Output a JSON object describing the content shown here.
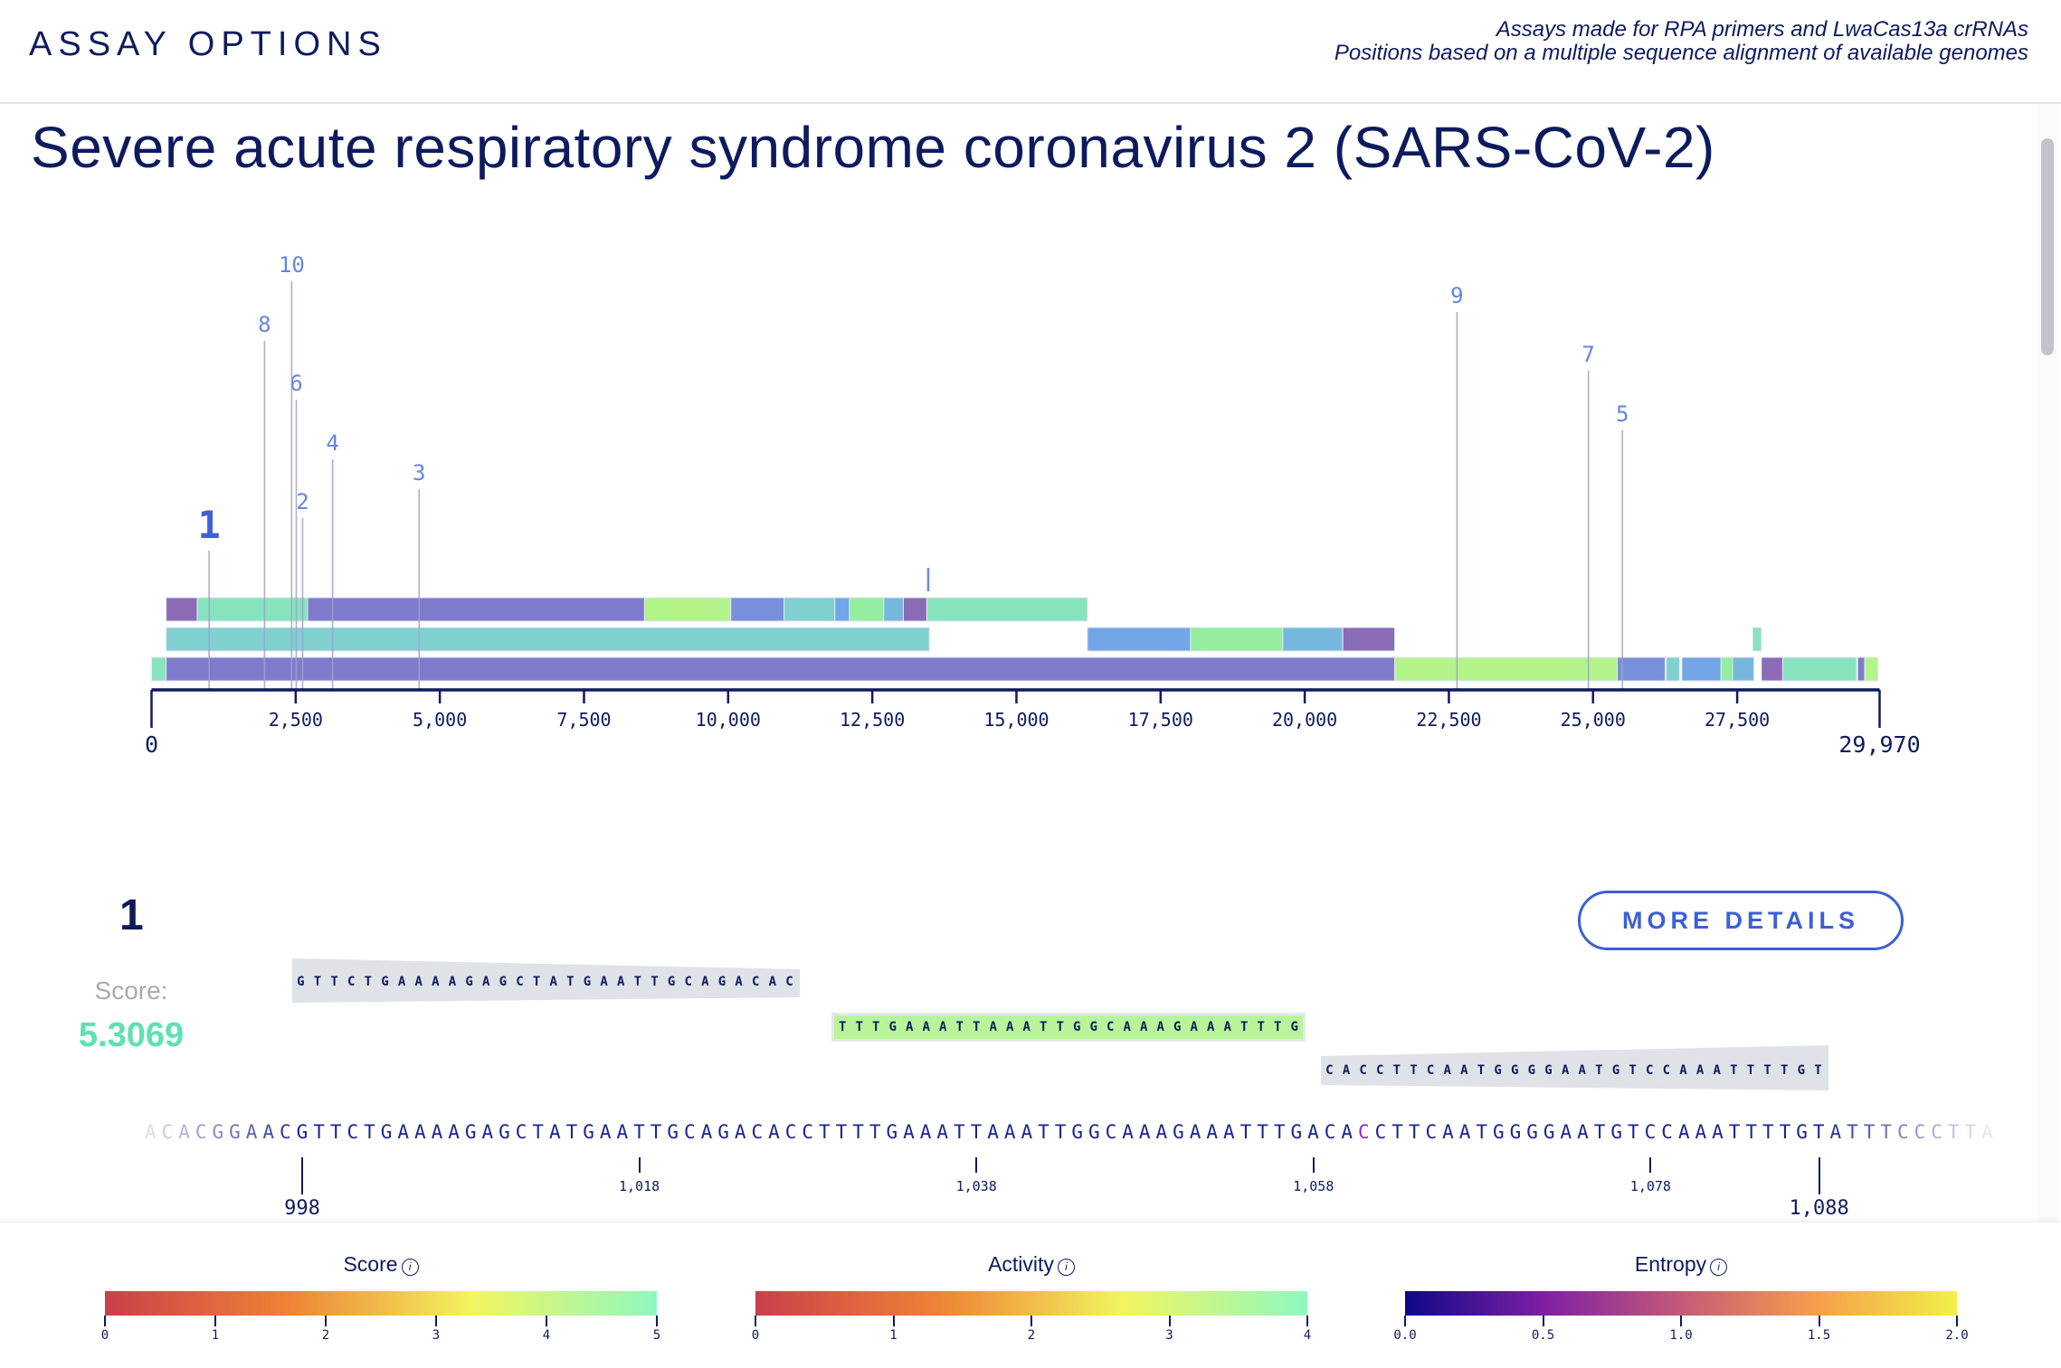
{
  "header": {
    "brand": "ASSAY OPTIONS",
    "note_line1": "Assays made for RPA primers and LwaCas13a crRNAs",
    "note_line2": "Positions based on a multiple sequence alignment of available genomes"
  },
  "title": "Severe acute respiratory syndrome coronavirus 2 (SARS-CoV-2)",
  "chart_data": {
    "type": "bar",
    "description_kind": "genome position map",
    "xlim": [
      0,
      29970
    ],
    "x_ticks": [
      0,
      2500,
      5000,
      7500,
      10000,
      12500,
      15000,
      17500,
      20000,
      22500,
      25000,
      27500,
      29970
    ],
    "x_tick_labels": [
      "0",
      "2,500",
      "5,000",
      "7,500",
      "10,000",
      "12,500",
      "15,000",
      "17,500",
      "20,000",
      "22,500",
      "25,000",
      "27,500",
      "29,970"
    ],
    "assays": [
      {
        "label": "1",
        "position": 998,
        "selected": true
      },
      {
        "label": "2",
        "position": 2620
      },
      {
        "label": "3",
        "position": 4640
      },
      {
        "label": "4",
        "position": 3140
      },
      {
        "label": "5",
        "position": 25510
      },
      {
        "label": "6",
        "position": 2510
      },
      {
        "label": "7",
        "position": 24920
      },
      {
        "label": "8",
        "position": 1960
      },
      {
        "label": "9",
        "position": 22640
      },
      {
        "label": "10",
        "position": 2430
      }
    ],
    "unlabeled_marker": 13470,
    "tracks": [
      [
        {
          "start": 253,
          "end": 792,
          "color": "#8a6bb5"
        },
        {
          "start": 792,
          "end": 2707,
          "color": "#86e3bd"
        },
        {
          "start": 2707,
          "end": 8550,
          "color": "#7f7bcc"
        },
        {
          "start": 8550,
          "end": 10046,
          "color": "#b3f48a"
        },
        {
          "start": 10046,
          "end": 10970,
          "color": "#7890db"
        },
        {
          "start": 10970,
          "end": 11851,
          "color": "#80d0d0"
        },
        {
          "start": 11851,
          "end": 12104,
          "color": "#73a6e6"
        },
        {
          "start": 12104,
          "end": 12698,
          "color": "#93ee9f"
        },
        {
          "start": 12698,
          "end": 13039,
          "color": "#76b8dc"
        },
        {
          "start": 13039,
          "end": 13446,
          "color": "#8a6bb5"
        },
        {
          "start": 13446,
          "end": 16230,
          "color": "#86e3bd"
        }
      ],
      [
        {
          "start": 253,
          "end": 13490,
          "color": "#80d0d0"
        },
        {
          "start": 16230,
          "end": 18020,
          "color": "#73a6e6"
        },
        {
          "start": 18020,
          "end": 19620,
          "color": "#93ee9f"
        },
        {
          "start": 19620,
          "end": 20660,
          "color": "#76b8dc"
        },
        {
          "start": 20660,
          "end": 21560,
          "color": "#8a6bb5"
        },
        {
          "start": 27770,
          "end": 27920,
          "color": "#86e3bd"
        }
      ],
      [
        {
          "start": 0,
          "end": 253,
          "color": "#86e3bd"
        },
        {
          "start": 253,
          "end": 21560,
          "color": "#7f7bcc"
        },
        {
          "start": 21560,
          "end": 25420,
          "color": "#b3f48a"
        },
        {
          "start": 25420,
          "end": 26250,
          "color": "#7890db"
        },
        {
          "start": 26270,
          "end": 26500,
          "color": "#80d0d0"
        },
        {
          "start": 26540,
          "end": 27220,
          "color": "#73a6e6"
        },
        {
          "start": 27220,
          "end": 27420,
          "color": "#93ee9f"
        },
        {
          "start": 27420,
          "end": 27790,
          "color": "#76b8dc"
        },
        {
          "start": 27920,
          "end": 28290,
          "color": "#8a6bb5"
        },
        {
          "start": 28290,
          "end": 29570,
          "color": "#86e3bd"
        },
        {
          "start": 29590,
          "end": 29710,
          "color": "#7f7bcc"
        },
        {
          "start": 29710,
          "end": 29940,
          "color": "#b3f48a"
        }
      ]
    ]
  },
  "detail": {
    "assay_number": "1",
    "score_label": "Score:",
    "score_value": "5.3069",
    "more_details_label": "MORE DETAILS",
    "forward_primer": "GTTCTGAAAAGAGCTATGAATTGCAGACAC",
    "crrna": "TTTGAAATTAAATTGGCAAAGAAATTTG",
    "reverse_primer": "CACCTTCAATGGGGAATGTCCAAATTTTGT",
    "sequence": "ACACGGAACGTTCTGAAAAGAGCTATGAATTGCAGACACCTTTTGAAATTAAATTGGCAAAGAAATTTGACACCTTCAATGGGGAATGTCCAAATTTTGTATTTCCCTTA",
    "sequence_start": 989,
    "highlighted_positions": [
      1061
    ],
    "highlight_color": "#8a2be2",
    "ticks": [
      {
        "position": 998,
        "label": "998",
        "major": true
      },
      {
        "position": 1018,
        "label": "1,018",
        "major": false
      },
      {
        "position": 1038,
        "label": "1,038",
        "major": false
      },
      {
        "position": 1058,
        "label": "1,058",
        "major": false
      },
      {
        "position": 1078,
        "label": "1,078",
        "major": false
      },
      {
        "position": 1088,
        "label": "1,088",
        "major": true
      }
    ]
  },
  "legends": [
    {
      "title": "Score",
      "info_icon": "i",
      "ticks": [
        "0",
        "1",
        "2",
        "3",
        "4",
        "5"
      ],
      "gradient": [
        "#c8404a",
        "#ef8335",
        "#f2f55f",
        "#8ef8c0"
      ]
    },
    {
      "title": "Activity",
      "info_icon": "i",
      "ticks": [
        "0",
        "1",
        "2",
        "3",
        "4"
      ],
      "gradient": [
        "#c8404a",
        "#ef8335",
        "#f2f55f",
        "#8ef8c0"
      ]
    },
    {
      "title": "Entropy",
      "info_icon": "i",
      "ticks": [
        "0.0",
        "0.5",
        "1.0",
        "1.5",
        "2.0"
      ],
      "gradient": [
        "#0d0887",
        "#7e1fa5",
        "#c45a78",
        "#f6a04a",
        "#f2f04a"
      ]
    }
  ]
}
